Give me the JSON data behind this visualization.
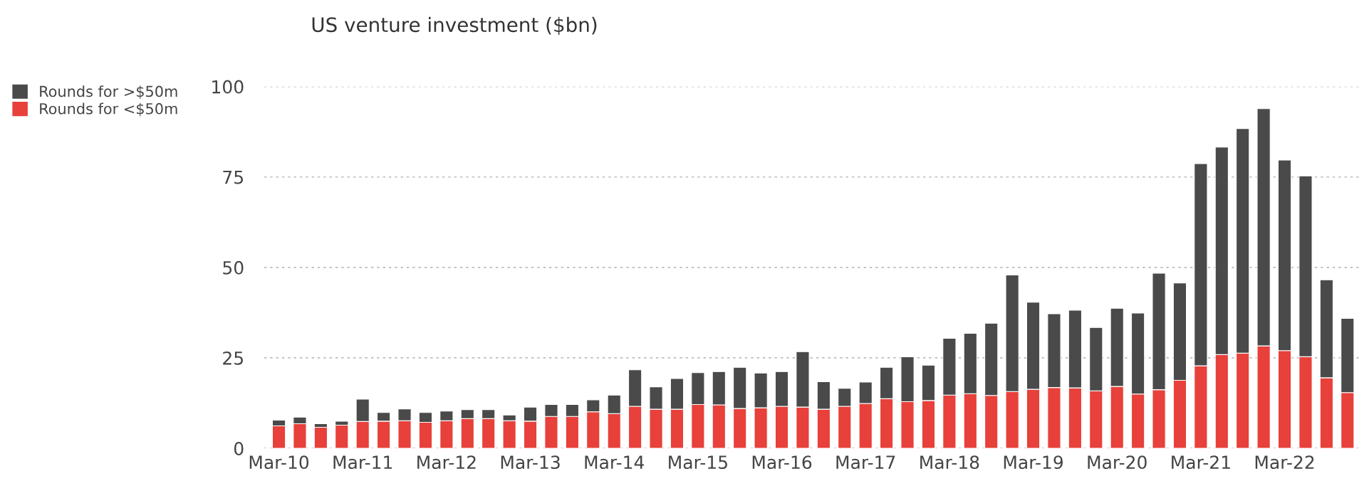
{
  "chart_data": {
    "type": "bar",
    "title": "US venture investment ($bn)",
    "stacked": true,
    "categories": [
      "Mar-10",
      null,
      null,
      null,
      "Mar-11",
      null,
      null,
      null,
      "Mar-12",
      null,
      null,
      null,
      "Mar-13",
      null,
      null,
      null,
      "Mar-14",
      null,
      null,
      null,
      "Mar-15",
      null,
      null,
      null,
      "Mar-16",
      null,
      null,
      null,
      "Mar-17",
      null,
      null,
      null,
      "Mar-18",
      null,
      null,
      null,
      "Mar-19",
      null,
      null,
      null,
      "Mar-20",
      null,
      null,
      null,
      "Mar-21",
      null,
      null,
      null,
      "Mar-22",
      null,
      null,
      null
    ],
    "series": [
      {
        "name": "Rounds for <$50m",
        "color": "#e8403a",
        "values": [
          6.2,
          6.8,
          5.8,
          6.4,
          7.4,
          7.5,
          7.6,
          7.2,
          7.6,
          8.2,
          8.2,
          7.6,
          7.5,
          8.8,
          8.8,
          10.1,
          9.6,
          11.6,
          10.8,
          10.8,
          12.1,
          12.0,
          11.0,
          11.2,
          11.6,
          11.4,
          10.8,
          11.6,
          12.4,
          13.7,
          12.9,
          13.2,
          14.7,
          15.1,
          14.6,
          15.7,
          16.3,
          16.8,
          16.7,
          15.9,
          17.1,
          15.0,
          16.2,
          18.8,
          22.8,
          25.9,
          26.3,
          28.3,
          27.0,
          25.3,
          19.5,
          15.4
        ]
      },
      {
        "name": "Rounds for >$50m",
        "color": "#4a4a4a",
        "values": [
          1.6,
          1.8,
          1.0,
          1.1,
          6.2,
          2.4,
          3.3,
          2.7,
          2.7,
          2.5,
          2.5,
          1.6,
          3.9,
          3.3,
          3.3,
          3.3,
          5.1,
          10.1,
          6.2,
          8.5,
          8.8,
          9.2,
          11.4,
          9.6,
          9.6,
          15.3,
          7.6,
          5.0,
          5.9,
          8.7,
          12.4,
          9.8,
          15.7,
          16.7,
          20.0,
          32.2,
          24.1,
          20.4,
          21.5,
          17.5,
          21.6,
          22.4,
          32.2,
          26.9,
          55.9,
          57.4,
          62.1,
          65.6,
          52.7,
          50.0,
          27.1,
          20.5
        ]
      }
    ],
    "ylim": [
      0,
      100
    ],
    "yticks": [
      0,
      25,
      50,
      75,
      100
    ],
    "grid": "y",
    "legend": "top left"
  }
}
